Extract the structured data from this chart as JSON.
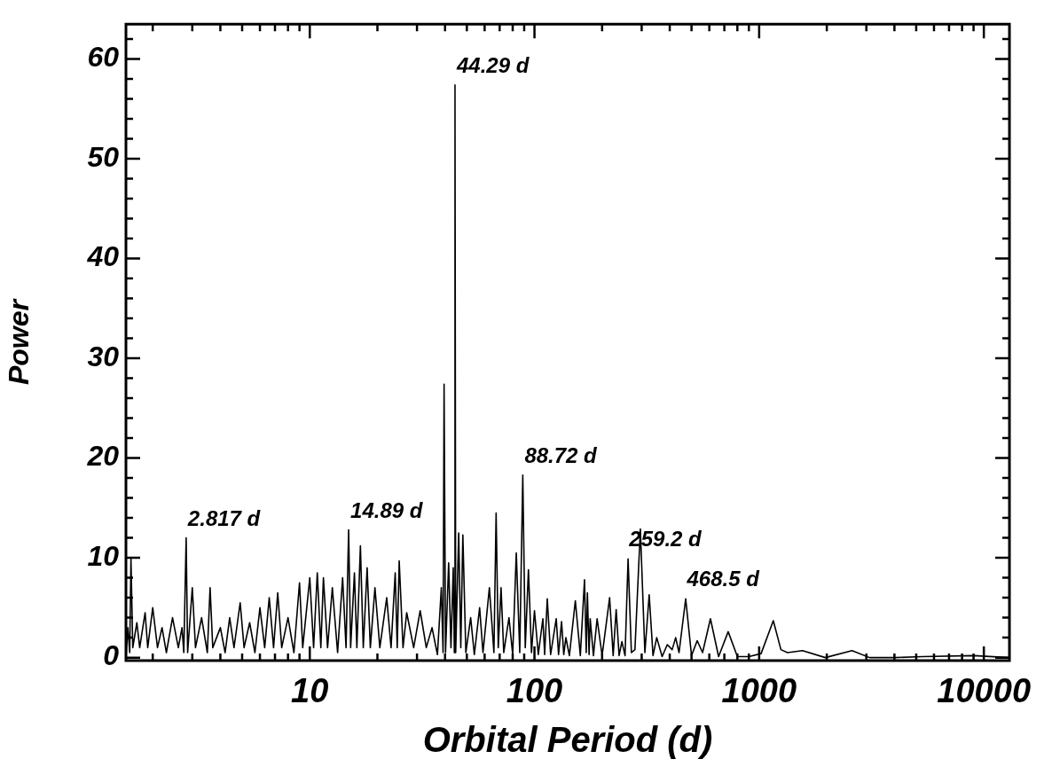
{
  "chart_data": {
    "type": "line",
    "xlabel": "Orbital Period (d)",
    "ylabel": "Power",
    "log": "x",
    "marker": "none",
    "grid": false,
    "legend": false,
    "xlim": [
      1.52,
      13000
    ],
    "ylim": [
      -0.3,
      63.5
    ],
    "xticks": [
      {
        "value": 2,
        "label": null
      },
      {
        "value": 3,
        "label": null
      },
      {
        "value": 4,
        "label": null
      },
      {
        "value": 5,
        "label": null
      },
      {
        "value": 6,
        "label": null
      },
      {
        "value": 7,
        "label": null
      },
      {
        "value": 8,
        "label": null
      },
      {
        "value": 9,
        "label": null
      },
      10,
      {
        "value": 20,
        "label": null
      },
      {
        "value": 30,
        "label": null
      },
      {
        "value": 40,
        "label": null
      },
      {
        "value": 50,
        "label": null
      },
      {
        "value": 60,
        "label": null
      },
      {
        "value": 70,
        "label": null
      },
      {
        "value": 80,
        "label": null
      },
      {
        "value": 90,
        "label": null
      },
      100,
      {
        "value": 200,
        "label": null
      },
      {
        "value": 300,
        "label": null
      },
      {
        "value": 400,
        "label": null
      },
      {
        "value": 500,
        "label": null
      },
      {
        "value": 600,
        "label": null
      },
      {
        "value": 700,
        "label": null
      },
      {
        "value": 800,
        "label": null
      },
      {
        "value": 900,
        "label": null
      },
      1000,
      {
        "value": 2000,
        "label": null
      },
      {
        "value": 3000,
        "label": null
      },
      {
        "value": 4000,
        "label": null
      },
      {
        "value": 5000,
        "label": null
      },
      {
        "value": 6000,
        "label": null
      },
      {
        "value": 7000,
        "label": null
      },
      {
        "value": 8000,
        "label": null
      },
      {
        "value": 9000,
        "label": null
      },
      10000
    ],
    "yticks": [
      0,
      {
        "value": 2,
        "label": null
      },
      {
        "value": 4,
        "label": null
      },
      {
        "value": 6,
        "label": null
      },
      {
        "value": 8,
        "label": null
      },
      10,
      {
        "value": 12,
        "label": null
      },
      {
        "value": 14,
        "label": null
      },
      {
        "value": 16,
        "label": null
      },
      {
        "value": 18,
        "label": null
      },
      20,
      {
        "value": 22,
        "label": null
      },
      {
        "value": 24,
        "label": null
      },
      {
        "value": 26,
        "label": null
      },
      {
        "value": 28,
        "label": null
      },
      30,
      {
        "value": 32,
        "label": null
      },
      {
        "value": 34,
        "label": null
      },
      {
        "value": 36,
        "label": null
      },
      {
        "value": 38,
        "label": null
      },
      40,
      {
        "value": 42,
        "label": null
      },
      {
        "value": 44,
        "label": null
      },
      {
        "value": 46,
        "label": null
      },
      {
        "value": 48,
        "label": null
      },
      50,
      {
        "value": 52,
        "label": null
      },
      {
        "value": 54,
        "label": null
      },
      {
        "value": 56,
        "label": null
      },
      {
        "value": 58,
        "label": null
      },
      60,
      {
        "value": 62,
        "label": null
      }
    ],
    "annotations": [
      {
        "text": "2.817 d",
        "x": 2.817,
        "y": 12
      },
      {
        "text": "14.89 d",
        "x": 14.89,
        "y": 12.8
      },
      {
        "text": "44.29 d",
        "x": 44.29,
        "y": 57.4
      },
      {
        "text": "88.72 d",
        "x": 88.72,
        "y": 18.3
      },
      {
        "text": "259.2 d",
        "x": 259.2,
        "y": 9.9
      },
      {
        "text": "468.5 d",
        "x": 468.5,
        "y": 5.9
      }
    ],
    "series": [
      {
        "color": "#000000",
        "x": [
          1.52,
          1.55,
          1.58,
          1.6,
          1.63,
          1.7,
          1.75,
          1.85,
          1.9,
          2.0,
          2.1,
          2.2,
          2.3,
          2.45,
          2.6,
          2.7,
          2.75,
          2.817,
          2.86,
          3.0,
          3.1,
          3.3,
          3.5,
          3.6,
          3.7,
          4.0,
          4.2,
          4.4,
          4.6,
          4.9,
          5.1,
          5.4,
          5.7,
          6.0,
          6.3,
          6.6,
          6.9,
          7.2,
          7.5,
          8.0,
          8.5,
          9.0,
          9.3,
          10.0,
          10.4,
          10.8,
          11.2,
          11.5,
          12.0,
          12.6,
          13.3,
          14.0,
          14.5,
          14.89,
          15.2,
          15.8,
          16.2,
          16.8,
          17.3,
          18.0,
          18.6,
          19.5,
          20.5,
          22,
          23,
          24,
          24.5,
          25,
          26,
          27,
          29,
          31,
          33,
          35,
          37,
          38.5,
          39.2,
          39.6,
          40.2,
          41.5,
          42.5,
          43.5,
          44.0,
          44.29,
          44.6,
          46,
          47,
          48,
          49.5,
          52,
          54,
          57,
          59,
          63,
          66,
          67.5,
          69,
          71,
          73,
          77,
          80,
          83,
          86,
          88.72,
          91,
          94,
          97,
          100,
          104,
          109,
          111,
          114,
          118,
          125,
          128,
          132,
          135,
          138,
          143,
          152,
          160,
          167,
          170,
          172,
          175,
          177,
          183,
          190,
          200,
          216,
          224,
          231,
          238,
          245,
          253,
          261,
          270,
          280,
          296,
          310,
          324,
          337,
          350,
          370,
          390,
          410,
          425,
          440,
          471,
          500,
          530,
          560,
          607,
          660,
          728,
          800,
          900,
          1020,
          1156,
          1250,
          1337,
          1560,
          1970,
          2590,
          3100,
          4000,
          5340,
          9000,
          13000
        ],
        "values": [
          0,
          3,
          0.5,
          9.9,
          1,
          3.5,
          1,
          4.5,
          1,
          5,
          1,
          3,
          0.5,
          4,
          1,
          3,
          0.5,
          12,
          0.5,
          7,
          1,
          4,
          0.5,
          7,
          1,
          3,
          0.5,
          4,
          1,
          5.5,
          1,
          3.5,
          0.5,
          5,
          1,
          6,
          1,
          6.5,
          1,
          4,
          0.5,
          7.5,
          1,
          8,
          1,
          8.5,
          1,
          8,
          1,
          7,
          0.5,
          8,
          1,
          12.8,
          1,
          8.5,
          1,
          11.2,
          1,
          9,
          1,
          7,
          1,
          6,
          1,
          8.5,
          1,
          9.7,
          1,
          4.5,
          1,
          4.7,
          1,
          3,
          0.3,
          7,
          0.5,
          27.4,
          0.5,
          9.5,
          1,
          9,
          0.5,
          57.4,
          0.5,
          12.5,
          1,
          12.3,
          0.5,
          4,
          0.3,
          5,
          0.5,
          7,
          0.5,
          14.5,
          1,
          7,
          0.5,
          4,
          0.3,
          10.5,
          0.5,
          18.3,
          1,
          8.8,
          0.5,
          4.7,
          0.3,
          3.9,
          0.3,
          5.9,
          0.3,
          3.9,
          0.3,
          3.6,
          0.3,
          2,
          0.2,
          5.7,
          0.2,
          7.8,
          0.5,
          6.5,
          0.3,
          3.9,
          0.2,
          3.9,
          0.2,
          6,
          0.2,
          4.8,
          0.2,
          1.6,
          0.2,
          9.9,
          0.5,
          0.8,
          12.9,
          0.5,
          6.3,
          0.2,
          2,
          0.1,
          1.3,
          0.8,
          2,
          0.5,
          5.9,
          0.2,
          1.7,
          0.5,
          3.9,
          0.1,
          2.6,
          0.1,
          0.1,
          0.4,
          3.7,
          0.8,
          0.5,
          0.7,
          0,
          0.7,
          0,
          0,
          0.1,
          0.2,
          0
        ]
      }
    ]
  }
}
